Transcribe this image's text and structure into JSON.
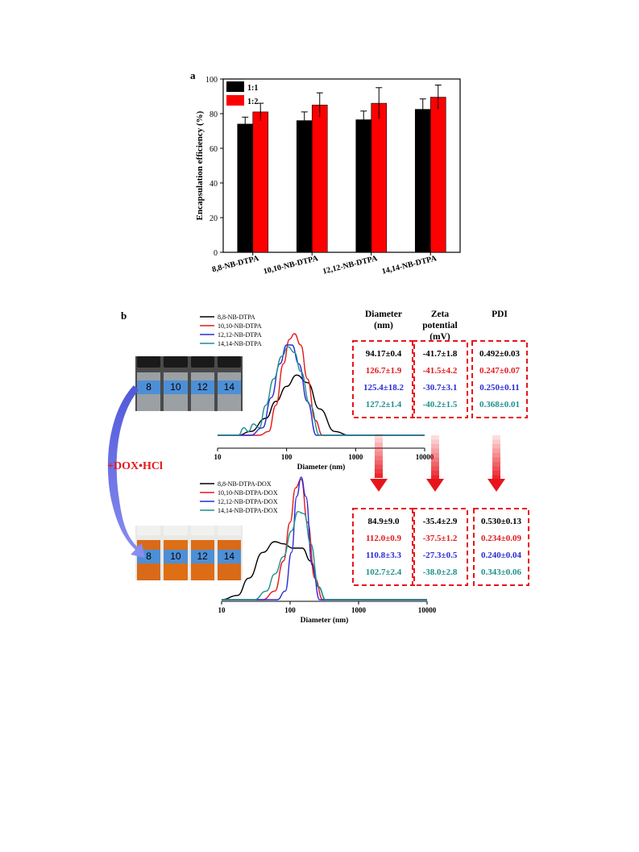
{
  "panel_a": {
    "label": "a"
  },
  "panel_b": {
    "label": "b"
  },
  "dox_label": "+DOX•HCl",
  "vial_numbers": [
    "8",
    "10",
    "12",
    "14"
  ],
  "colors": {
    "c8": "#000000",
    "c10": "#e31a1c",
    "c12": "#2b2bd6",
    "c14": "#1f8f8f",
    "bar_1_1": "#000000",
    "bar_1_2": "#ff0000",
    "arrow": "#e8141c",
    "box": "#e8141c"
  },
  "table_headers": [
    "Diameter\n(nm)",
    "Zeta\npotential\n(mV)",
    "PDI"
  ],
  "table_before": [
    [
      "94.17±0.4",
      "126.7±1.9",
      "125.4±18.2",
      "127.2±1.4"
    ],
    [
      "-41.7±1.8",
      "-41.5±4.2",
      "-30.7±3.1",
      "-40.2±1.5"
    ],
    [
      "0.492±0.03",
      "0.247±0.07",
      "0.250±0.11",
      "0.368±0.01"
    ]
  ],
  "table_after": [
    [
      "84.9±9.0",
      "112.0±0.9",
      "110.8±3.3",
      "102.7±2.4"
    ],
    [
      "-35.4±2.9",
      "-37.5±1.2",
      "-27.3±0.5",
      "-38.0±2.8"
    ],
    [
      "0.530±0.13",
      "0.234±0.09",
      "0.240±0.04",
      "0.343±0.06"
    ]
  ],
  "chart_data": [
    {
      "type": "bar",
      "title": "",
      "xlabel": "",
      "ylabel": "Encapsulation efficiency (%)",
      "ylim": [
        0,
        100
      ],
      "yticks": [
        0,
        20,
        40,
        60,
        80,
        100
      ],
      "categories": [
        "8,8-NB-DTPA",
        "10,10-NB-DTPA",
        "12,12-NB-DTPA",
        "14,14-NB-DTPA"
      ],
      "legend": "top-left",
      "series": [
        {
          "name": "1:1",
          "values": [
            74,
            76,
            76.5,
            82.5
          ],
          "errors": [
            4,
            5,
            5,
            6
          ]
        },
        {
          "name": "1:2",
          "values": [
            81,
            85,
            86,
            89.5
          ],
          "errors": [
            5,
            7,
            9,
            7
          ]
        }
      ]
    },
    {
      "type": "line",
      "xlabel": "Diameter (nm)",
      "xscale": "log",
      "xlim": [
        10,
        10000
      ],
      "xticks": [
        "10",
        "100",
        "1000",
        "10000"
      ],
      "legend": "top-left",
      "series": [
        {
          "name": "8,8-NB-DTPA",
          "x": [
            10,
            20,
            30,
            50,
            70,
            100,
            140,
            200,
            300,
            500,
            800,
            10000
          ],
          "y": [
            0,
            0,
            1,
            4.5,
            9,
            13,
            16,
            14,
            7,
            1,
            0,
            0
          ]
        },
        {
          "name": "10,10-NB-DTPA",
          "x": [
            10,
            40,
            55,
            70,
            90,
            110,
            130,
            160,
            200,
            260,
            330,
            10000
          ],
          "y": [
            0,
            0,
            1,
            8,
            19,
            25.5,
            27,
            24,
            15,
            4,
            0,
            0
          ]
        },
        {
          "name": "12,12-NB-DTPA",
          "x": [
            10,
            30,
            45,
            60,
            80,
            100,
            120,
            150,
            200,
            270,
            10000
          ],
          "y": [
            0,
            0,
            2,
            10,
            19,
            24,
            24,
            19,
            9,
            0,
            0
          ]
        },
        {
          "name": "14,14-NB-DTPA",
          "x": [
            10,
            20,
            24,
            28,
            33,
            40,
            50,
            65,
            85,
            105,
            130,
            160,
            220,
            300,
            10000
          ],
          "y": [
            0,
            0,
            2,
            1,
            3,
            2,
            8,
            15,
            21,
            23.5,
            22,
            17,
            8,
            0,
            0
          ]
        }
      ]
    },
    {
      "type": "line",
      "xlabel": "Diameter (nm)",
      "xscale": "log",
      "xlim": [
        10,
        10000
      ],
      "xticks": [
        "10",
        "100",
        "1000",
        "10000"
      ],
      "legend": "top-left",
      "series": [
        {
          "name": "8,8-NB-DTPA-DOX",
          "x": [
            10,
            17,
            25,
            40,
            60,
            80,
            110,
            150,
            200,
            260,
            330,
            10000
          ],
          "y": [
            0,
            1,
            5,
            11,
            13.5,
            13,
            12,
            12,
            9,
            3,
            0,
            0
          ]
        },
        {
          "name": "10,10-NB-DTPA-DOX",
          "x": [
            10,
            40,
            60,
            80,
            100,
            120,
            145,
            180,
            230,
            300,
            10000
          ],
          "y": [
            0,
            0,
            2,
            9,
            18,
            26,
            28,
            18,
            5,
            0,
            0
          ]
        },
        {
          "name": "12,12-NB-DTPA-DOX",
          "x": [
            10,
            65,
            85,
            105,
            125,
            145,
            170,
            210,
            270,
            10000
          ],
          "y": [
            0,
            0,
            2,
            11,
            24,
            28.5,
            24,
            8,
            0,
            0
          ]
        },
        {
          "name": "14,14-NB-DTPA-DOX",
          "x": [
            10,
            30,
            45,
            60,
            80,
            105,
            130,
            160,
            200,
            260,
            330,
            10000
          ],
          "y": [
            0,
            0,
            2,
            6,
            10,
            16,
            20.5,
            20,
            13,
            3,
            0,
            0
          ]
        }
      ]
    }
  ]
}
